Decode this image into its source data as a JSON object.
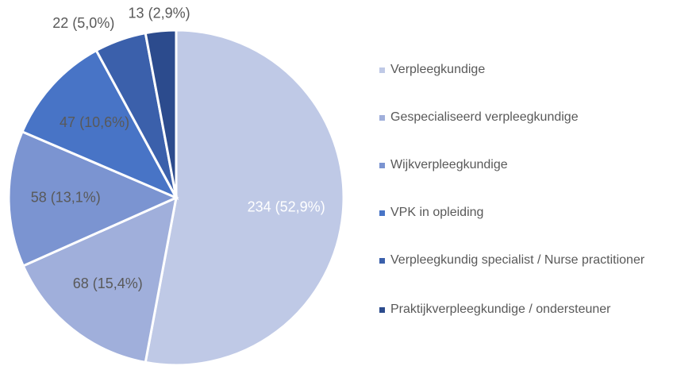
{
  "chart_data": {
    "type": "pie",
    "categories": [
      "Verpleegkundige",
      "Gespecialiseerd verpleegkundige",
      "Wijkverpleegkundige",
      "VPK in opleiding",
      "Verpleegkundig specialist / Nurse practitioner",
      "Praktijkverpleegkundige / ondersteuner"
    ],
    "values": [
      234,
      68,
      58,
      47,
      22,
      13
    ],
    "value_labels": [
      "234 (52,9%)",
      "68 (15,4%)",
      "58 (13,1%)",
      "47 (10,6%)",
      "22 (5,0%)",
      "13 (2,9%)"
    ],
    "colors": [
      "#bfc9e6",
      "#a0afdb",
      "#7b94d1",
      "#4874c6",
      "#3b60ab",
      "#2c4b8d"
    ],
    "label_colors": [
      "#ffffff",
      "#595959",
      "#595959",
      "#595959",
      "#595959",
      "#595959"
    ],
    "legend": "right"
  }
}
